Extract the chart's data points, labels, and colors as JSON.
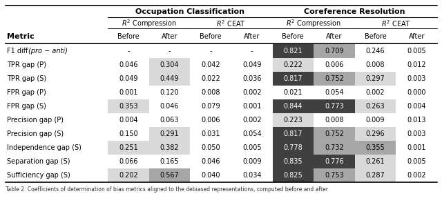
{
  "title_left": "Occupation Classification",
  "title_right": "Coreference Resolution",
  "row_labels": [
    "F1 diff",
    "TPR gap (P)",
    "TPR gap (S)",
    "FPR gap (P)",
    "FPR gap (S)",
    "Precision gap (P)",
    "Precision gap (S)",
    "Independence gap (S)",
    "Separation gap (S)",
    "Sufficiency gap (S)"
  ],
  "data": [
    [
      "-",
      "-",
      "-",
      "-",
      "0.821",
      "0.709",
      "0.246",
      "0.005"
    ],
    [
      "0.046",
      "0.304",
      "0.042",
      "0.049",
      "0.222",
      "0.006",
      "0.008",
      "0.012"
    ],
    [
      "0.049",
      "0.449",
      "0.022",
      "0.036",
      "0.817",
      "0.752",
      "0.297",
      "0.003"
    ],
    [
      "0.001",
      "0.120",
      "0.008",
      "0.002",
      "0.021",
      "0.054",
      "0.002",
      "0.000"
    ],
    [
      "0.353",
      "0.046",
      "0.079",
      "0.001",
      "0.844",
      "0.773",
      "0.263",
      "0.004"
    ],
    [
      "0.004",
      "0.063",
      "0.006",
      "0.002",
      "0.223",
      "0.008",
      "0.009",
      "0.013"
    ],
    [
      "0.150",
      "0.291",
      "0.031",
      "0.054",
      "0.817",
      "0.752",
      "0.296",
      "0.003"
    ],
    [
      "0.251",
      "0.382",
      "0.050",
      "0.005",
      "0.778",
      "0.732",
      "0.355",
      "0.001"
    ],
    [
      "0.066",
      "0.165",
      "0.046",
      "0.009",
      "0.835",
      "0.776",
      "0.261",
      "0.005"
    ],
    [
      "0.202",
      "0.567",
      "0.040",
      "0.034",
      "0.825",
      "0.753",
      "0.287",
      "0.002"
    ]
  ],
  "cell_colors": [
    [
      "white",
      "white",
      "white",
      "white",
      "dark",
      "medium",
      "white",
      "white"
    ],
    [
      "white",
      "light",
      "white",
      "white",
      "light",
      "white",
      "white",
      "white"
    ],
    [
      "white",
      "light",
      "white",
      "white",
      "dark",
      "medium",
      "light",
      "white"
    ],
    [
      "white",
      "white",
      "white",
      "white",
      "white",
      "white",
      "white",
      "white"
    ],
    [
      "light",
      "white",
      "white",
      "white",
      "dark",
      "dark",
      "light",
      "white"
    ],
    [
      "white",
      "white",
      "white",
      "white",
      "light",
      "white",
      "white",
      "white"
    ],
    [
      "white",
      "light",
      "white",
      "white",
      "dark",
      "medium",
      "light",
      "white"
    ],
    [
      "light",
      "light",
      "white",
      "white",
      "dark",
      "medium",
      "medium",
      "white"
    ],
    [
      "white",
      "white",
      "white",
      "white",
      "dark",
      "dark",
      "light",
      "white"
    ],
    [
      "light",
      "medium",
      "white",
      "white",
      "dark",
      "medium",
      "light",
      "white"
    ]
  ],
  "color_map": {
    "white": "#ffffff",
    "light": "#d9d9d9",
    "medium": "#a6a6a6",
    "dark": "#404040"
  },
  "text_color_map": {
    "white": "#000000",
    "light": "#000000",
    "medium": "#000000",
    "dark": "#ffffff"
  },
  "caption": "Table 2: Coefficients of determination of bias metrics aligned to the debiased representations, computed before and after"
}
